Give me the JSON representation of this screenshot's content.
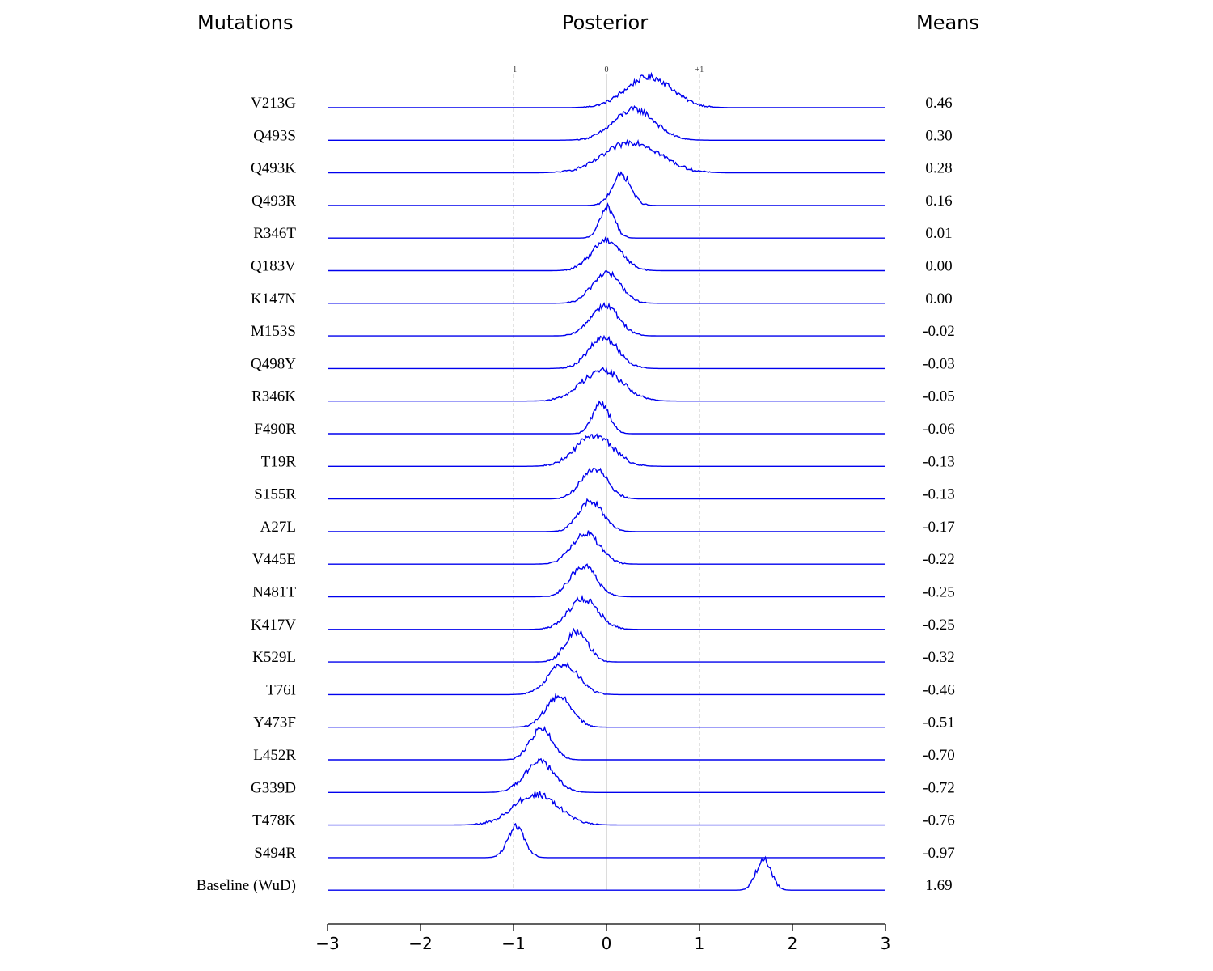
{
  "headers": {
    "mutations": "Mutations",
    "posterior": "Posterior",
    "means": "Means"
  },
  "chart_data": {
    "type": "ridgeline",
    "xlim": [
      -3,
      3
    ],
    "x_ticks": [
      "−3",
      "−2",
      "−1",
      "0",
      "1",
      "2",
      "3"
    ],
    "x_tick_values": [
      -3,
      -2,
      -1,
      0,
      1,
      2,
      3
    ],
    "ref_lines": [
      {
        "x": -1,
        "label": "-1"
      },
      {
        "x": 0,
        "label": "0"
      },
      {
        "x": 1,
        "label": "+1"
      }
    ],
    "line_color": "#0000ee",
    "grid": false,
    "series": [
      {
        "name": "V213G",
        "mean": "0.46",
        "center": 0.46,
        "sd": 0.25
      },
      {
        "name": "Q493S",
        "mean": "0.30",
        "center": 0.3,
        "sd": 0.22
      },
      {
        "name": "Q493K",
        "mean": "0.28",
        "center": 0.28,
        "sd": 0.3
      },
      {
        "name": "Q493R",
        "mean": "0.16",
        "center": 0.16,
        "sd": 0.1
      },
      {
        "name": "R346T",
        "mean": "0.01",
        "center": 0.01,
        "sd": 0.08
      },
      {
        "name": "Q183V",
        "mean": "0.00",
        "center": 0.0,
        "sd": 0.16
      },
      {
        "name": "K147N",
        "mean": "0.00",
        "center": 0.0,
        "sd": 0.15
      },
      {
        "name": "M153S",
        "mean": "-0.02",
        "center": -0.02,
        "sd": 0.15
      },
      {
        "name": "Q498Y",
        "mean": "-0.03",
        "center": -0.03,
        "sd": 0.16
      },
      {
        "name": "R346K",
        "mean": "-0.05",
        "center": -0.05,
        "sd": 0.22
      },
      {
        "name": "F490R",
        "mean": "-0.06",
        "center": -0.06,
        "sd": 0.09
      },
      {
        "name": "T19R",
        "mean": "-0.13",
        "center": -0.13,
        "sd": 0.2
      },
      {
        "name": "S155R",
        "mean": "-0.13",
        "center": -0.13,
        "sd": 0.14
      },
      {
        "name": "A27L",
        "mean": "-0.17",
        "center": -0.17,
        "sd": 0.13
      },
      {
        "name": "V445E",
        "mean": "-0.22",
        "center": -0.22,
        "sd": 0.15
      },
      {
        "name": "N481T",
        "mean": "-0.25",
        "center": -0.25,
        "sd": 0.14
      },
      {
        "name": "K417V",
        "mean": "-0.25",
        "center": -0.25,
        "sd": 0.16
      },
      {
        "name": "K529L",
        "mean": "-0.32",
        "center": -0.32,
        "sd": 0.12
      },
      {
        "name": "T76I",
        "mean": "-0.46",
        "center": -0.46,
        "sd": 0.16
      },
      {
        "name": "Y473F",
        "mean": "-0.51",
        "center": -0.51,
        "sd": 0.14
      },
      {
        "name": "L452R",
        "mean": "-0.70",
        "center": -0.7,
        "sd": 0.12
      },
      {
        "name": "G339D",
        "mean": "-0.72",
        "center": -0.72,
        "sd": 0.16
      },
      {
        "name": "T478K",
        "mean": "-0.76",
        "center": -0.76,
        "sd": 0.24
      },
      {
        "name": "S494R",
        "mean": "-0.97",
        "center": -0.97,
        "sd": 0.09
      },
      {
        "name": "Baseline (WuD)",
        "mean": "1.69",
        "center": 1.69,
        "sd": 0.08
      }
    ]
  }
}
